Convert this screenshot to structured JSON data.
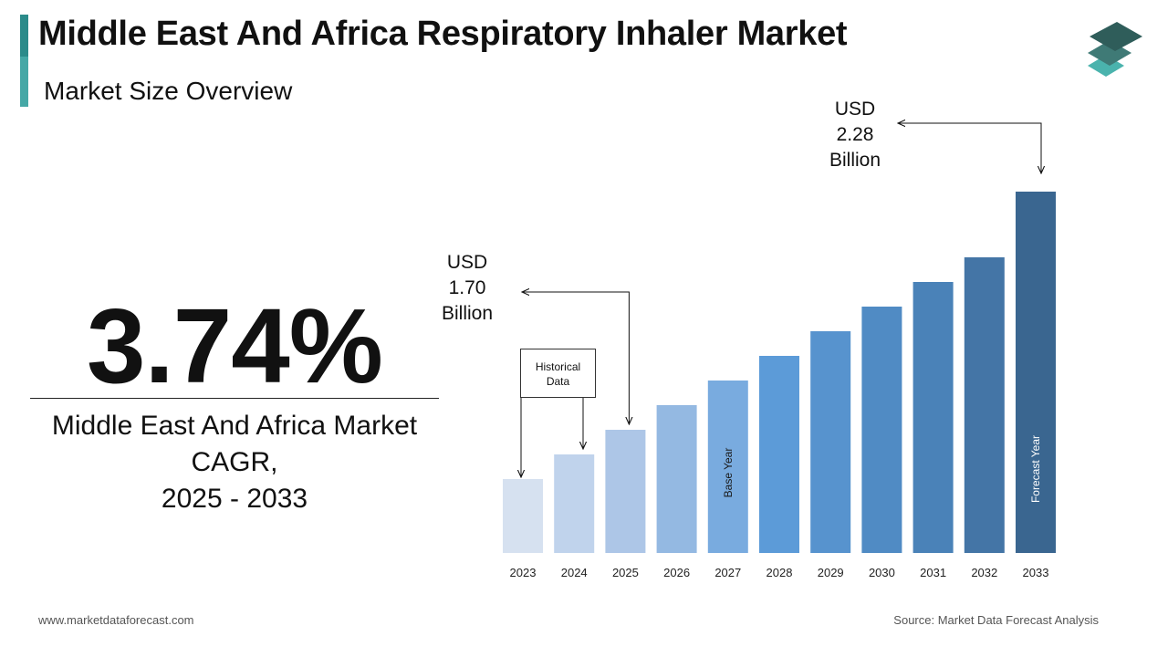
{
  "header": {
    "title": "Middle East And Africa Respiratory Inhaler Market",
    "subtitle": "Market Size Overview"
  },
  "logo": {
    "icon": "stacked-layers-icon",
    "colors": [
      "#2f5d5a",
      "#3f7a76",
      "#4ab3ad"
    ]
  },
  "cagr": {
    "value": "3.74%",
    "label_lines": [
      "Middle East And Africa Market",
      "CAGR,",
      "2025 - 2033"
    ]
  },
  "chart_data": {
    "type": "bar",
    "categories": [
      "2023",
      "2024",
      "2025",
      "2026",
      "2027",
      "2028",
      "2029",
      "2030",
      "2031",
      "2032",
      "2033"
    ],
    "values": [
      1.58,
      1.64,
      1.7,
      1.76,
      1.82,
      1.88,
      1.94,
      2.0,
      2.06,
      2.12,
      2.28
    ],
    "bar_colors": [
      "#d6e1f0",
      "#c0d3ec",
      "#adc6e7",
      "#94b9e2",
      "#79abdf",
      "#5c9bd8",
      "#5793ce",
      "#508bc4",
      "#4a82b8",
      "#4475a6",
      "#3a6690"
    ],
    "ylim": [
      1.4,
      2.3
    ],
    "bar_inner_labels": [
      {
        "index": 4,
        "text": "Base Year",
        "color": "#1a1a1a"
      },
      {
        "index": 10,
        "text": "Forecast Year",
        "color": "#ffffff"
      }
    ],
    "annotations": [
      {
        "type": "callout",
        "lines": [
          "USD",
          "1.70",
          "Billion"
        ],
        "bar_index": 2
      },
      {
        "type": "callout",
        "lines": [
          "USD",
          "2.28",
          "Billion"
        ],
        "bar_index": 10
      },
      {
        "type": "box",
        "lines": [
          "Historical",
          "Data"
        ],
        "bar_indices": [
          0,
          1
        ]
      }
    ],
    "grid": false
  },
  "footer": {
    "website": "www.marketdataforecast.com",
    "source": "Source: Market Data Forecast Analysis"
  }
}
